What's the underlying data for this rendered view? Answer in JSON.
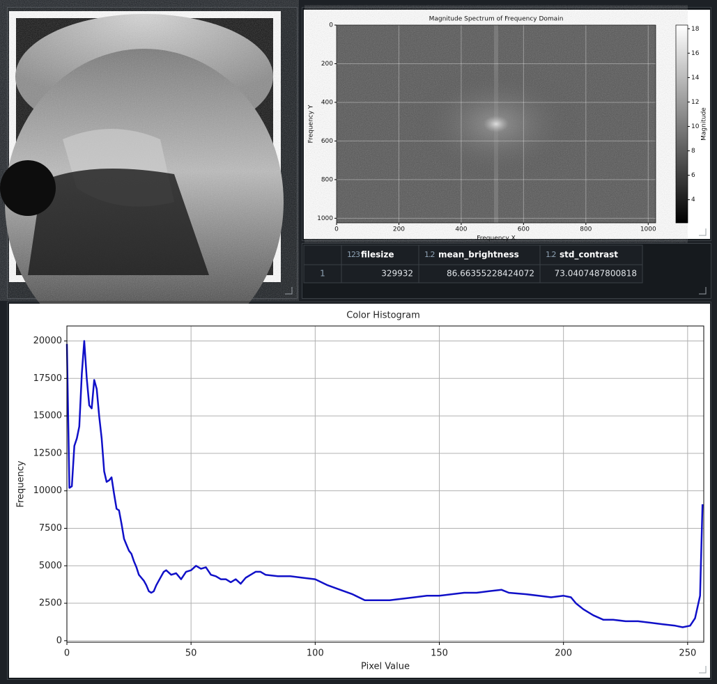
{
  "chart_data": [
    {
      "type": "image",
      "title": "Magnitude Spectrum of Frequency Domain",
      "x_label": "Frequency X",
      "y_label": "Frequency Y",
      "xlim": [
        0,
        1024
      ],
      "xticks": [
        0,
        200,
        400,
        600,
        800,
        1000
      ],
      "ylim": [
        0,
        1024
      ],
      "yticks": [
        0,
        200,
        400,
        600,
        800,
        1000
      ],
      "colorbar_label": "Magnitude",
      "clim": [
        2.1,
        18.3
      ],
      "cticks": [
        4,
        6,
        8,
        10,
        12,
        14,
        16,
        18
      ],
      "grid": true
    },
    {
      "type": "line",
      "title": "Color Histogram",
      "x_label": "Pixel Value",
      "y_label": "Frequency",
      "color": "#1010c8",
      "grid": true,
      "xlim": [
        0,
        256.5
      ],
      "xticks": [
        0,
        50,
        100,
        150,
        200,
        250
      ],
      "ylim": [
        -100,
        21000
      ],
      "yticks": [
        0,
        2500,
        5000,
        7500,
        10000,
        12500,
        15000,
        17500,
        20000
      ],
      "x": [
        0,
        1,
        2,
        3,
        4,
        5,
        6,
        7,
        8,
        9,
        10,
        11,
        12,
        13,
        14,
        15,
        16,
        17,
        18,
        19,
        20,
        21,
        22,
        23,
        24,
        25,
        26,
        27,
        28,
        29,
        30,
        31,
        32,
        33,
        34,
        35,
        36,
        37,
        38,
        39,
        40,
        42,
        44,
        46,
        48,
        50,
        52,
        54,
        56,
        58,
        60,
        62,
        64,
        66,
        68,
        70,
        72,
        74,
        76,
        78,
        80,
        85,
        90,
        95,
        100,
        105,
        110,
        115,
        120,
        125,
        130,
        135,
        140,
        145,
        150,
        155,
        160,
        165,
        170,
        175,
        178,
        185,
        190,
        195,
        200,
        203,
        205,
        208,
        212,
        216,
        220,
        225,
        230,
        235,
        240,
        245,
        248,
        251,
        253,
        255,
        256
      ],
      "values": [
        19800,
        10200,
        10300,
        13000,
        13500,
        14300,
        17800,
        20000,
        17500,
        15700,
        15500,
        17400,
        16800,
        15000,
        13500,
        11300,
        10600,
        10700,
        10900,
        9800,
        8800,
        8700,
        7800,
        6800,
        6400,
        6000,
        5800,
        5300,
        4900,
        4400,
        4200,
        4000,
        3700,
        3300,
        3200,
        3300,
        3700,
        4000,
        4300,
        4600,
        4700,
        4400,
        4500,
        4100,
        4600,
        4700,
        5000,
        4800,
        4900,
        4400,
        4300,
        4100,
        4100,
        3900,
        4100,
        3800,
        4200,
        4400,
        4600,
        4600,
        4400,
        4300,
        4300,
        4200,
        4100,
        3700,
        3400,
        3100,
        2700,
        2700,
        2700,
        2800,
        2900,
        3000,
        3000,
        3100,
        3200,
        3200,
        3300,
        3400,
        3200,
        3100,
        3000,
        2900,
        3000,
        2900,
        2500,
        2100,
        1700,
        1400,
        1400,
        1300,
        1300,
        1200,
        1100,
        1000,
        900,
        1000,
        1500,
        3000,
        9100
      ]
    }
  ],
  "table": {
    "index_header": "",
    "columns": [
      {
        "type": "123",
        "name": "filesize"
      },
      {
        "type": "1.2",
        "name": "mean_brightness"
      },
      {
        "type": "1.2",
        "name": "std_contrast"
      }
    ],
    "rows": [
      {
        "index": "1",
        "cells": [
          "329932",
          "86.66355228424072",
          "73.0407487800818"
        ]
      }
    ]
  }
}
